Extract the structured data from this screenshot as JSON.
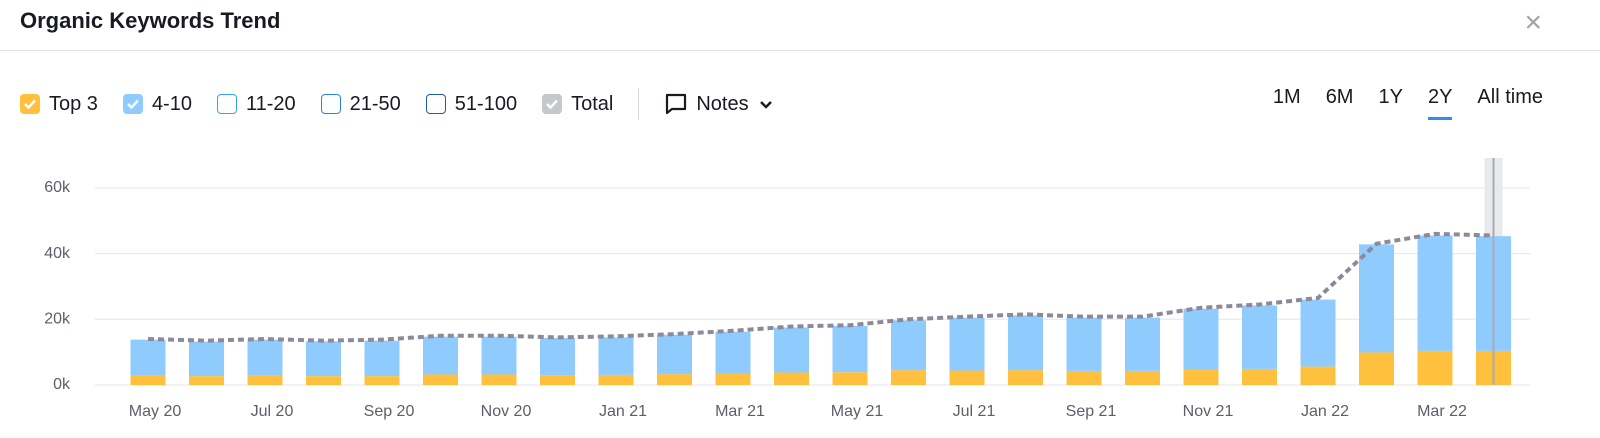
{
  "header": {
    "title": "Organic Keywords Trend",
    "close": "×"
  },
  "filters": [
    {
      "name": "11-20",
      "color": "#34a4f0"
    },
    {
      "name": "21-50",
      "color": "#2a86d6"
    },
    {
      "name": "51-100",
      "color": "#1e5ba8"
    }
  ],
  "notes": "Notes",
  "ranges": [
    "1M",
    "6M",
    "1Y",
    "2Y",
    "All time"
  ],
  "active_range": "2Y",
  "chart_data": {
    "type": "bar",
    "stacked": true,
    "categories": [
      "May 20",
      null,
      "Jul 20",
      null,
      "Sep 20",
      null,
      "Nov 20",
      null,
      "Jan 21",
      null,
      "Mar 21",
      null,
      "May 21",
      null,
      "Jul 21",
      null,
      "Sep 21",
      null,
      "Nov 21",
      null,
      "Jan 22",
      null,
      "Mar 22",
      null
    ],
    "series": [
      {
        "name": "Top 3",
        "color": "#ffc13d",
        "values": [
          2800,
          2700,
          2800,
          2700,
          2700,
          3200,
          3200,
          3000,
          3100,
          3300,
          3500,
          3800,
          3900,
          4500,
          4400,
          4500,
          4300,
          4300,
          4700,
          4900,
          5600,
          9900,
          10400,
          10400
        ]
      },
      {
        "name": "4-10",
        "color": "#8fcbfc",
        "values": [
          11000,
          10500,
          11000,
          10600,
          10800,
          11500,
          11500,
          11300,
          11400,
          12000,
          12700,
          13700,
          14100,
          15200,
          16100,
          16700,
          16200,
          16200,
          18500,
          19300,
          20400,
          32900,
          35100,
          34900
        ]
      },
      {
        "name": "Total",
        "type": "line",
        "color": "#8c8a99",
        "dashed": true,
        "values": [
          14000,
          13500,
          14000,
          13500,
          13800,
          15000,
          15000,
          14500,
          14800,
          15500,
          16500,
          17800,
          18200,
          20000,
          20800,
          21500,
          20800,
          20800,
          23500,
          24500,
          26500,
          43000,
          46000,
          45500
        ]
      }
    ],
    "ylim": [
      0,
      70000
    ],
    "yticks": [
      {
        "value": 0,
        "label": "0k"
      },
      {
        "value": 20000,
        "label": "20k"
      },
      {
        "value": 40000,
        "label": "40k"
      },
      {
        "value": 60000,
        "label": "60k"
      }
    ],
    "grid": true
  }
}
